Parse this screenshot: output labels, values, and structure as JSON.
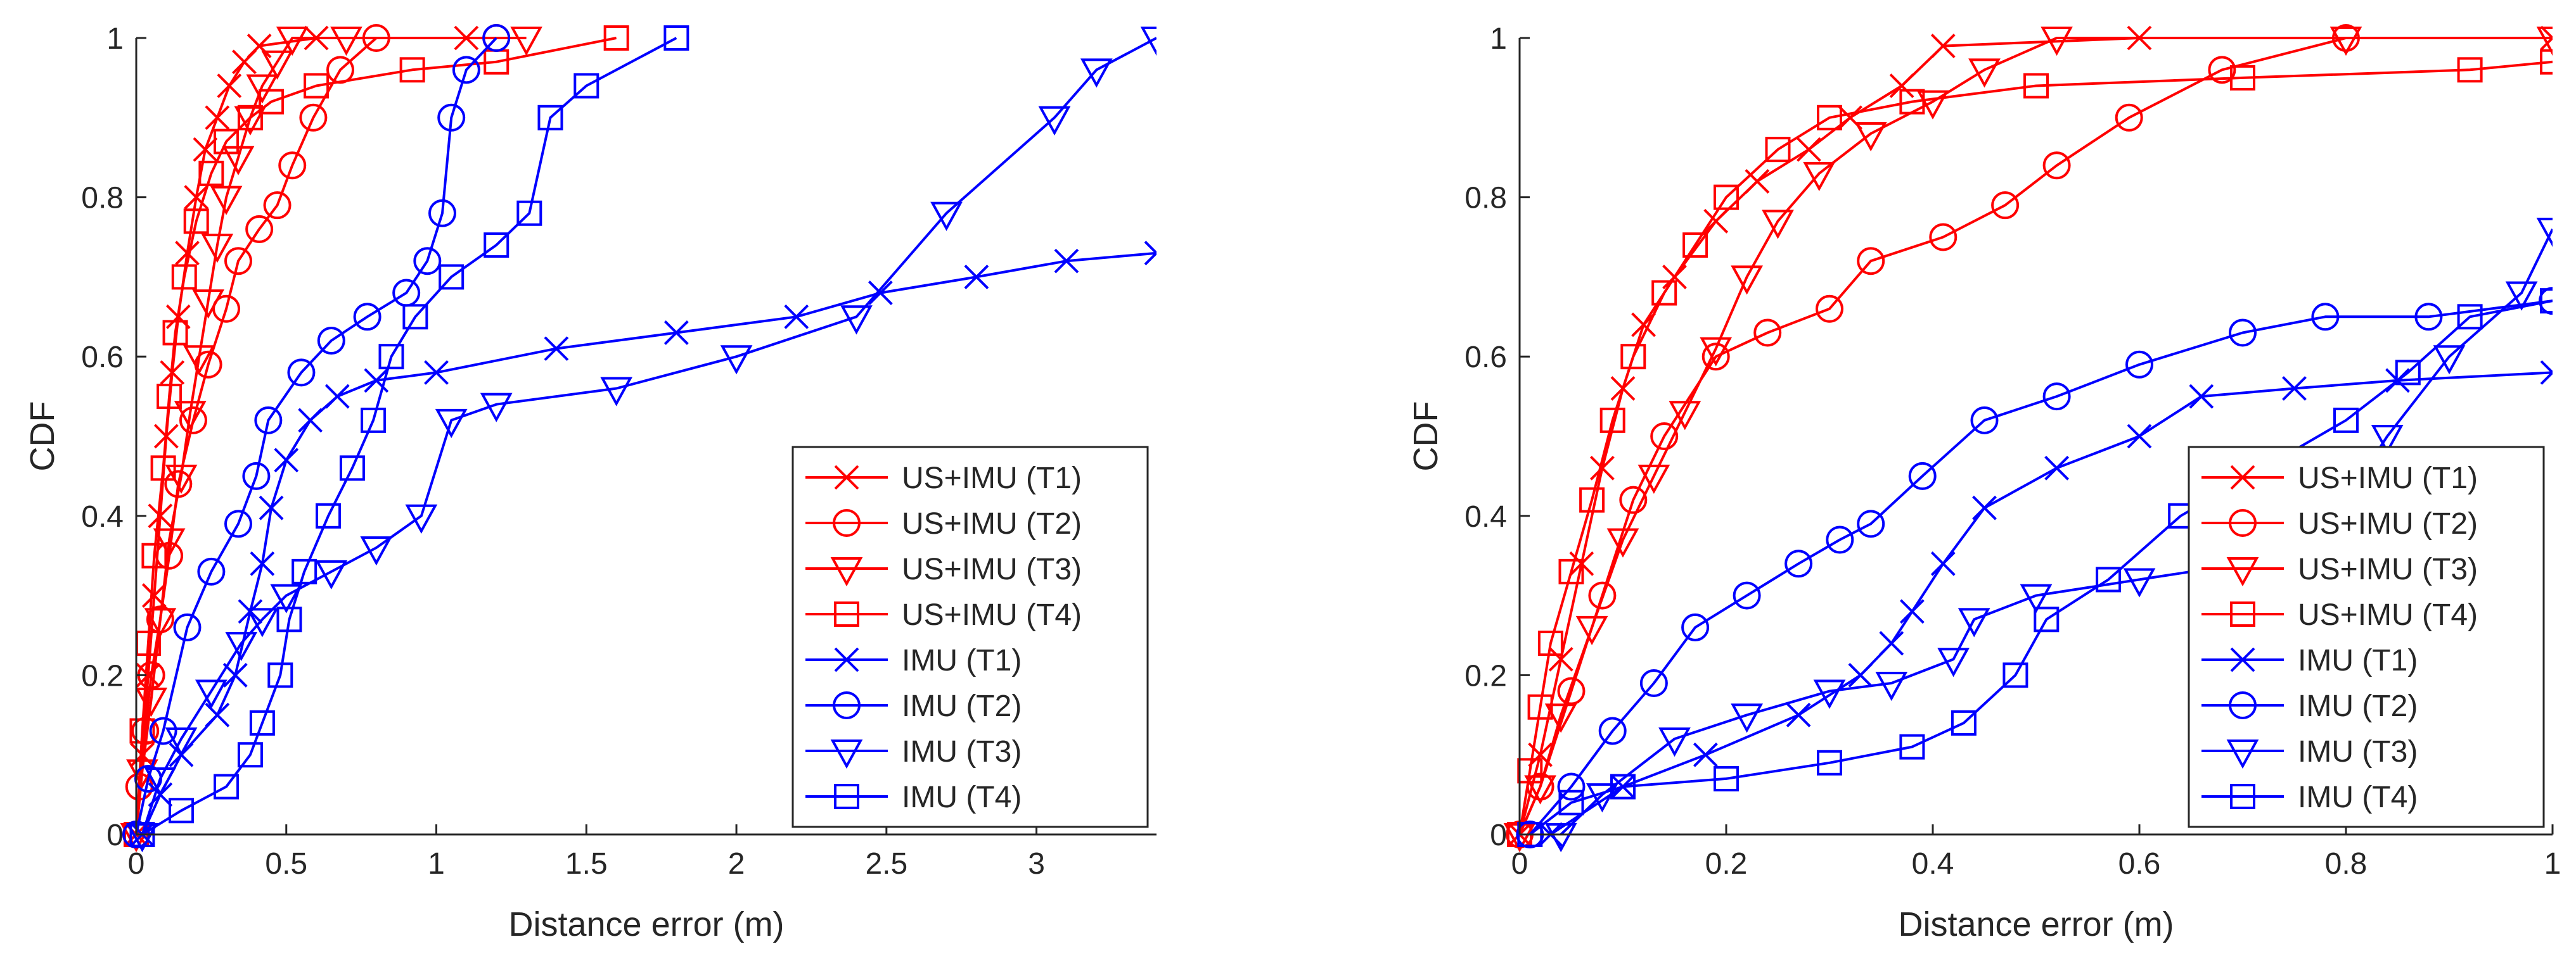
{
  "chart_data": [
    {
      "type": "line",
      "title": "",
      "xlabel": "Distance error (m)",
      "ylabel": "CDF",
      "xlim": [
        0,
        3.4
      ],
      "ylim": [
        0,
        1
      ],
      "xticks": [
        0,
        0.5,
        1,
        1.5,
        2,
        2.5,
        3
      ],
      "xtick_labels": [
        "0",
        "0.5",
        "1",
        "1.5",
        "2",
        "2.5",
        "3"
      ],
      "yticks": [
        0,
        0.2,
        0.4,
        0.6,
        0.8,
        1
      ],
      "ytick_labels": [
        "0",
        "0.2",
        "0.4",
        "0.6",
        "0.8",
        "1"
      ],
      "legend_position": "bottom-right",
      "series": [
        {
          "name": "US+IMU (T1)",
          "color": "#ff0000",
          "marker": "x",
          "x": [
            0,
            0.02,
            0.04,
            0.06,
            0.08,
            0.1,
            0.12,
            0.14,
            0.17,
            0.2,
            0.23,
            0.27,
            0.31,
            0.36,
            0.41,
            0.6,
            1.1
          ],
          "y": [
            0,
            0.1,
            0.2,
            0.3,
            0.4,
            0.5,
            0.58,
            0.65,
            0.73,
            0.8,
            0.86,
            0.9,
            0.94,
            0.97,
            0.99,
            1.0,
            1.0
          ]
        },
        {
          "name": "US+IMU (T2)",
          "color": "#ff0000",
          "marker": "o",
          "x": [
            0,
            0.01,
            0.03,
            0.05,
            0.08,
            0.11,
            0.14,
            0.19,
            0.24,
            0.3,
            0.34,
            0.41,
            0.47,
            0.52,
            0.59,
            0.68,
            0.8,
            1.2
          ],
          "y": [
            0,
            0.06,
            0.13,
            0.2,
            0.27,
            0.35,
            0.44,
            0.52,
            0.59,
            0.66,
            0.72,
            0.76,
            0.79,
            0.84,
            0.9,
            0.96,
            1.0,
            1.0
          ]
        },
        {
          "name": "US+IMU (T3)",
          "color": "#ff0000",
          "marker": "v",
          "x": [
            0,
            0.02,
            0.05,
            0.08,
            0.11,
            0.15,
            0.18,
            0.21,
            0.24,
            0.27,
            0.3,
            0.34,
            0.38,
            0.42,
            0.47,
            0.52,
            0.7,
            1.3
          ],
          "y": [
            0,
            0.08,
            0.17,
            0.27,
            0.37,
            0.45,
            0.53,
            0.6,
            0.67,
            0.74,
            0.8,
            0.85,
            0.9,
            0.94,
            0.97,
            1.0,
            1.0,
            1.0
          ]
        },
        {
          "name": "US+IMU (T4)",
          "color": "#ff0000",
          "marker": "s",
          "x": [
            0,
            0.02,
            0.04,
            0.06,
            0.09,
            0.11,
            0.13,
            0.16,
            0.2,
            0.25,
            0.3,
            0.38,
            0.45,
            0.6,
            0.92,
            1.2,
            1.6
          ],
          "y": [
            0,
            0.13,
            0.24,
            0.35,
            0.46,
            0.55,
            0.63,
            0.7,
            0.77,
            0.83,
            0.87,
            0.9,
            0.92,
            0.94,
            0.96,
            0.97,
            1.0
          ]
        },
        {
          "name": "IMU (T1)",
          "color": "#0000ff",
          "marker": "x",
          "x": [
            0.02,
            0.08,
            0.15,
            0.27,
            0.33,
            0.38,
            0.42,
            0.45,
            0.5,
            0.58,
            0.67,
            0.8,
            1.0,
            1.4,
            1.8,
            2.2,
            2.48,
            2.8,
            3.1,
            3.4
          ],
          "y": [
            0,
            0.05,
            0.1,
            0.15,
            0.2,
            0.28,
            0.34,
            0.41,
            0.47,
            0.52,
            0.55,
            0.57,
            0.58,
            0.61,
            0.63,
            0.65,
            0.68,
            0.7,
            0.72,
            0.73
          ]
        },
        {
          "name": "IMU (T2)",
          "color": "#0000ff",
          "marker": "o",
          "x": [
            0,
            0.04,
            0.09,
            0.17,
            0.25,
            0.34,
            0.4,
            0.44,
            0.55,
            0.65,
            0.77,
            0.9,
            0.97,
            1.02,
            1.05,
            1.1,
            1.2
          ],
          "y": [
            0,
            0.07,
            0.13,
            0.26,
            0.33,
            0.39,
            0.45,
            0.52,
            0.58,
            0.62,
            0.65,
            0.68,
            0.72,
            0.78,
            0.9,
            0.96,
            1.0
          ]
        },
        {
          "name": "IMU (T3)",
          "color": "#0000ff",
          "marker": "v",
          "x": [
            0.02,
            0.08,
            0.15,
            0.25,
            0.35,
            0.42,
            0.5,
            0.65,
            0.8,
            0.95,
            1.05,
            1.2,
            1.6,
            2.0,
            2.4,
            2.7,
            3.06,
            3.2,
            3.4
          ],
          "y": [
            0,
            0.07,
            0.12,
            0.18,
            0.24,
            0.27,
            0.3,
            0.33,
            0.36,
            0.4,
            0.52,
            0.54,
            0.56,
            0.6,
            0.65,
            0.78,
            0.9,
            0.96,
            1.0
          ]
        },
        {
          "name": "IMU (T4)",
          "color": "#0000ff",
          "marker": "s",
          "x": [
            0.02,
            0.15,
            0.3,
            0.38,
            0.42,
            0.48,
            0.51,
            0.56,
            0.64,
            0.72,
            0.79,
            0.85,
            0.93,
            1.05,
            1.2,
            1.31,
            1.38,
            1.5,
            1.8
          ],
          "y": [
            0,
            0.03,
            0.06,
            0.1,
            0.14,
            0.2,
            0.27,
            0.33,
            0.4,
            0.46,
            0.52,
            0.6,
            0.65,
            0.7,
            0.74,
            0.78,
            0.9,
            0.94,
            1.0
          ]
        }
      ]
    },
    {
      "type": "line",
      "title": "",
      "xlabel": "Distance error (m)",
      "ylabel": "CDF",
      "xlim": [
        0,
        1
      ],
      "ylim": [
        0,
        1
      ],
      "xticks": [
        0,
        0.2,
        0.4,
        0.6,
        0.8,
        1
      ],
      "xtick_labels": [
        "0",
        "0.2",
        "0.4",
        "0.6",
        "0.8",
        "1"
      ],
      "yticks": [
        0,
        0.2,
        0.4,
        0.6,
        0.8,
        1
      ],
      "ytick_labels": [
        "0",
        "0.2",
        "0.4",
        "0.6",
        "0.8",
        "1"
      ],
      "legend_position": "bottom-right",
      "series": [
        {
          "name": "US+IMU (T1)",
          "color": "#ff0000",
          "marker": "x",
          "x": [
            0,
            0.02,
            0.04,
            0.06,
            0.08,
            0.1,
            0.12,
            0.15,
            0.19,
            0.23,
            0.28,
            0.32,
            0.37,
            0.41,
            0.6,
            1.0
          ],
          "y": [
            0,
            0.1,
            0.22,
            0.34,
            0.46,
            0.56,
            0.64,
            0.7,
            0.77,
            0.82,
            0.86,
            0.9,
            0.94,
            0.99,
            1.0,
            1.0
          ]
        },
        {
          "name": "US+IMU (T2)",
          "color": "#ff0000",
          "marker": "o",
          "x": [
            0,
            0.02,
            0.05,
            0.08,
            0.11,
            0.14,
            0.19,
            0.24,
            0.3,
            0.34,
            0.41,
            0.47,
            0.52,
            0.59,
            0.68,
            0.8
          ],
          "y": [
            0,
            0.06,
            0.18,
            0.3,
            0.42,
            0.5,
            0.6,
            0.63,
            0.66,
            0.72,
            0.75,
            0.79,
            0.84,
            0.9,
            0.96,
            1.0
          ]
        },
        {
          "name": "US+IMU (T3)",
          "color": "#ff0000",
          "marker": "v",
          "x": [
            0,
            0.02,
            0.04,
            0.07,
            0.1,
            0.13,
            0.16,
            0.19,
            0.22,
            0.25,
            0.29,
            0.34,
            0.4,
            0.45,
            0.52,
            0.8,
            1.0
          ],
          "y": [
            0,
            0.06,
            0.15,
            0.26,
            0.37,
            0.45,
            0.53,
            0.61,
            0.7,
            0.77,
            0.83,
            0.88,
            0.92,
            0.96,
            1.0,
            1.0,
            1.0
          ]
        },
        {
          "name": "US+IMU (T4)",
          "color": "#ff0000",
          "marker": "s",
          "x": [
            0,
            0.01,
            0.02,
            0.03,
            0.05,
            0.07,
            0.09,
            0.11,
            0.14,
            0.17,
            0.2,
            0.25,
            0.3,
            0.38,
            0.5,
            0.7,
            0.92,
            1.0
          ],
          "y": [
            0,
            0.08,
            0.16,
            0.24,
            0.33,
            0.42,
            0.52,
            0.6,
            0.68,
            0.74,
            0.8,
            0.86,
            0.9,
            0.92,
            0.94,
            0.95,
            0.96,
            0.97
          ]
        },
        {
          "name": "IMU (T1)",
          "color": "#0000ff",
          "marker": "x",
          "x": [
            0.03,
            0.1,
            0.18,
            0.27,
            0.33,
            0.36,
            0.38,
            0.41,
            0.45,
            0.52,
            0.6,
            0.66,
            0.75,
            0.85,
            1.0
          ],
          "y": [
            0,
            0.06,
            0.1,
            0.15,
            0.2,
            0.24,
            0.28,
            0.34,
            0.41,
            0.46,
            0.5,
            0.55,
            0.56,
            0.57,
            0.58
          ]
        },
        {
          "name": "IMU (T2)",
          "color": "#0000ff",
          "marker": "o",
          "x": [
            0.01,
            0.05,
            0.09,
            0.13,
            0.17,
            0.22,
            0.27,
            0.31,
            0.34,
            0.39,
            0.45,
            0.52,
            0.6,
            0.7,
            0.78,
            0.88,
            1.0
          ],
          "y": [
            0,
            0.06,
            0.13,
            0.19,
            0.26,
            0.3,
            0.34,
            0.37,
            0.39,
            0.45,
            0.52,
            0.55,
            0.59,
            0.63,
            0.65,
            0.65,
            0.67
          ]
        },
        {
          "name": "IMU (T3)",
          "color": "#0000ff",
          "marker": "v",
          "x": [
            0.04,
            0.08,
            0.15,
            0.22,
            0.3,
            0.36,
            0.42,
            0.44,
            0.5,
            0.6,
            0.7,
            0.79,
            0.84,
            0.9,
            0.97,
            1.0
          ],
          "y": [
            0,
            0.05,
            0.12,
            0.15,
            0.18,
            0.19,
            0.22,
            0.27,
            0.3,
            0.32,
            0.34,
            0.4,
            0.5,
            0.6,
            0.68,
            0.76
          ]
        },
        {
          "name": "IMU (T4)",
          "color": "#0000ff",
          "marker": "s",
          "x": [
            0.01,
            0.05,
            0.1,
            0.2,
            0.3,
            0.38,
            0.43,
            0.48,
            0.51,
            0.57,
            0.64,
            0.72,
            0.8,
            0.86,
            0.92,
            1.0
          ],
          "y": [
            0,
            0.04,
            0.06,
            0.07,
            0.09,
            0.11,
            0.14,
            0.2,
            0.27,
            0.32,
            0.4,
            0.46,
            0.52,
            0.58,
            0.65,
            0.67
          ]
        }
      ]
    }
  ]
}
